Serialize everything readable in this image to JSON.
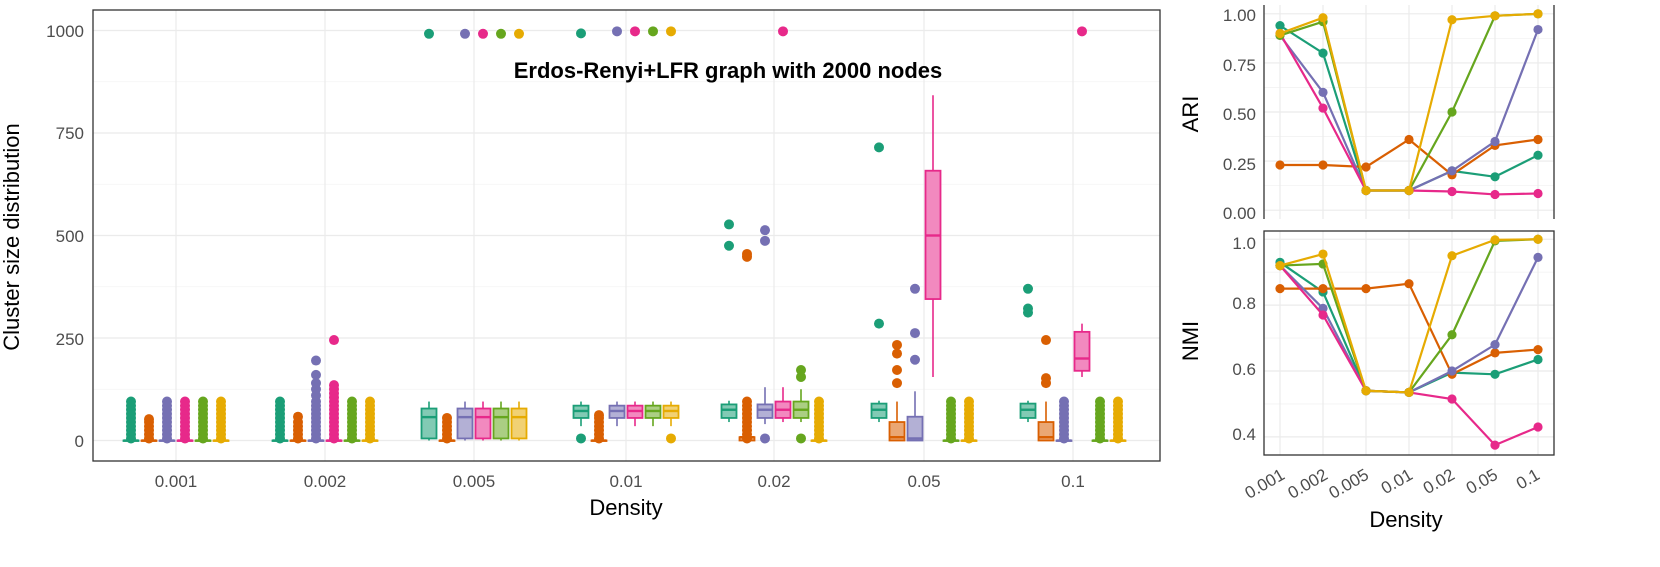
{
  "palette": {
    "Teal": "#1b9e77",
    "Orange": "#d95f02",
    "Purple": "#7570b3",
    "Pink": "#e7298a",
    "Green": "#66a61e",
    "Gold": "#e6ab02"
  },
  "chart_data": [
    {
      "type": "boxplot",
      "title": "Erdos-Renyi+LFR graph with 2000 nodes",
      "xlabel": "Density",
      "ylabel": "Cluster size distribution",
      "categories": [
        "0.001",
        "0.002",
        "0.005",
        "0.01",
        "0.02",
        "0.05",
        "0.1"
      ],
      "series_names": [
        "Teal",
        "Orange",
        "Purple",
        "Pink",
        "Green",
        "Gold"
      ],
      "yticks": [
        0,
        250,
        500,
        750,
        1000
      ],
      "ylim": [
        -50,
        1050
      ],
      "groups": [
        [
          {
            "series": "Teal",
            "q1": 0,
            "median": 0,
            "q3": 0,
            "lo": 0,
            "hi": 0,
            "outliers": [
              5,
              15,
              25,
              35,
              45,
              55,
              65,
              75,
              85,
              95
            ]
          },
          {
            "series": "Orange",
            "q1": 0,
            "median": 0,
            "q3": 0,
            "lo": 0,
            "hi": 0,
            "outliers": [
              5,
              15,
              25,
              35,
              45,
              52
            ]
          },
          {
            "series": "Purple",
            "q1": 0,
            "median": 0,
            "q3": 0,
            "lo": 0,
            "hi": 0,
            "outliers": [
              5,
              15,
              25,
              35,
              45,
              55,
              65,
              75,
              85,
              95
            ]
          },
          {
            "series": "Pink",
            "q1": 0,
            "median": 0,
            "q3": 0,
            "lo": 0,
            "hi": 0,
            "outliers": [
              5,
              15,
              25,
              35,
              45,
              55,
              65,
              75,
              85,
              95
            ]
          },
          {
            "series": "Green",
            "q1": 0,
            "median": 0,
            "q3": 0,
            "lo": 0,
            "hi": 0,
            "outliers": [
              5,
              15,
              25,
              35,
              45,
              55,
              65,
              75,
              85,
              95
            ]
          },
          {
            "series": "Gold",
            "q1": 0,
            "median": 0,
            "q3": 0,
            "lo": 0,
            "hi": 0,
            "outliers": [
              5,
              15,
              25,
              35,
              45,
              55,
              65,
              75,
              85,
              95
            ]
          }
        ],
        [
          {
            "series": "Teal",
            "q1": 0,
            "median": 0,
            "q3": 0,
            "lo": 0,
            "hi": 0,
            "outliers": [
              5,
              15,
              25,
              35,
              45,
              55,
              65,
              75,
              85,
              95
            ]
          },
          {
            "series": "Orange",
            "q1": 0,
            "median": 0,
            "q3": 0,
            "lo": 0,
            "hi": 0,
            "outliers": [
              5,
              15,
              25,
              35,
              45,
              58
            ]
          },
          {
            "series": "Purple",
            "q1": 0,
            "median": 0,
            "q3": 0,
            "lo": 0,
            "hi": 0,
            "outliers": [
              5,
              15,
              25,
              35,
              45,
              55,
              65,
              75,
              85,
              95,
              110,
              125,
              140,
              160,
              195
            ]
          },
          {
            "series": "Pink",
            "q1": 0,
            "median": 0,
            "q3": 0,
            "lo": 0,
            "hi": 0,
            "outliers": [
              5,
              15,
              25,
              35,
              45,
              55,
              65,
              75,
              85,
              95,
              105,
              115,
              125,
              135,
              245
            ]
          },
          {
            "series": "Green",
            "q1": 0,
            "median": 0,
            "q3": 0,
            "lo": 0,
            "hi": 0,
            "outliers": [
              5,
              15,
              25,
              35,
              45,
              55,
              65,
              75,
              85,
              95
            ]
          },
          {
            "series": "Gold",
            "q1": 0,
            "median": 0,
            "q3": 0,
            "lo": 0,
            "hi": 0,
            "outliers": [
              5,
              15,
              25,
              35,
              45,
              55,
              65,
              75,
              85,
              95
            ]
          }
        ],
        [
          {
            "series": "Teal",
            "q1": 5,
            "median": 57,
            "q3": 78,
            "lo": 0,
            "hi": 95,
            "outliers": [
              992
            ]
          },
          {
            "series": "Orange",
            "q1": 0,
            "median": 0,
            "q3": 0,
            "lo": 0,
            "hi": 0,
            "outliers": [
              5,
              15,
              25,
              35,
              45,
              55
            ]
          },
          {
            "series": "Purple",
            "q1": 5,
            "median": 57,
            "q3": 78,
            "lo": 0,
            "hi": 95,
            "outliers": [
              992
            ]
          },
          {
            "series": "Pink",
            "q1": 5,
            "median": 57,
            "q3": 78,
            "lo": 0,
            "hi": 95,
            "outliers": [
              992
            ]
          },
          {
            "series": "Green",
            "q1": 5,
            "median": 57,
            "q3": 78,
            "lo": 0,
            "hi": 95,
            "outliers": [
              992
            ]
          },
          {
            "series": "Gold",
            "q1": 5,
            "median": 57,
            "q3": 78,
            "lo": 0,
            "hi": 95,
            "outliers": [
              992
            ]
          }
        ],
        [
          {
            "series": "Teal",
            "q1": 55,
            "median": 72,
            "q3": 85,
            "lo": 35,
            "hi": 95,
            "outliers": [
              5,
              993
            ]
          },
          {
            "series": "Orange",
            "q1": 0,
            "median": 0,
            "q3": 0,
            "lo": 0,
            "hi": 0,
            "outliers": [
              5,
              15,
              25,
              35,
              45,
              55,
              62
            ]
          },
          {
            "series": "Purple",
            "q1": 55,
            "median": 72,
            "q3": 85,
            "lo": 35,
            "hi": 95,
            "outliers": [
              998
            ]
          },
          {
            "series": "Pink",
            "q1": 55,
            "median": 72,
            "q3": 85,
            "lo": 35,
            "hi": 95,
            "outliers": [
              998
            ]
          },
          {
            "series": "Green",
            "q1": 55,
            "median": 72,
            "q3": 85,
            "lo": 35,
            "hi": 95,
            "outliers": [
              998
            ]
          },
          {
            "series": "Gold",
            "q1": 55,
            "median": 72,
            "q3": 85,
            "lo": 35,
            "hi": 95,
            "outliers": [
              5,
              998
            ]
          }
        ],
        [
          {
            "series": "Teal",
            "q1": 55,
            "median": 75,
            "q3": 88,
            "lo": 45,
            "hi": 97,
            "outliers": [
              475,
              527
            ]
          },
          {
            "series": "Orange",
            "q1": 0,
            "median": 8,
            "q3": 8,
            "lo": 0,
            "hi": 95,
            "outliers": [
              5,
              15,
              25,
              35,
              45,
              55,
              65,
              75,
              85,
              95,
              448,
              455
            ]
          },
          {
            "series": "Purple",
            "q1": 55,
            "median": 75,
            "q3": 88,
            "lo": 40,
            "hi": 130,
            "outliers": [
              5,
              487,
              513
            ]
          },
          {
            "series": "Pink",
            "q1": 55,
            "median": 75,
            "q3": 95,
            "lo": 45,
            "hi": 130,
            "outliers": [
              998
            ]
          },
          {
            "series": "Green",
            "q1": 55,
            "median": 75,
            "q3": 95,
            "lo": 45,
            "hi": 125,
            "outliers": [
              5,
              155,
              172
            ]
          },
          {
            "series": "Gold",
            "q1": 0,
            "median": 0,
            "q3": 0,
            "lo": 0,
            "hi": 0,
            "outliers": [
              5,
              15,
              25,
              35,
              45,
              55,
              65,
              75,
              85,
              95
            ]
          }
        ],
        [
          {
            "series": "Teal",
            "q1": 55,
            "median": 75,
            "q3": 90,
            "lo": 45,
            "hi": 97,
            "outliers": [
              285,
              715
            ]
          },
          {
            "series": "Orange",
            "q1": 0,
            "median": 8,
            "q3": 45,
            "lo": 0,
            "hi": 95,
            "outliers": [
              140,
              172,
              212,
              233
            ]
          },
          {
            "series": "Purple",
            "q1": 0,
            "median": 5,
            "q3": 58,
            "lo": 0,
            "hi": 120,
            "outliers": [
              197,
              262,
              370
            ]
          },
          {
            "series": "Pink",
            "q1": 345,
            "median": 500,
            "q3": 658,
            "lo": 155,
            "hi": 842,
            "outliers": []
          },
          {
            "series": "Green",
            "q1": 0,
            "median": 0,
            "q3": 0,
            "lo": 0,
            "hi": 0,
            "outliers": [
              5,
              15,
              25,
              35,
              45,
              55,
              65,
              75,
              85,
              95
            ]
          },
          {
            "series": "Gold",
            "q1": 0,
            "median": 0,
            "q3": 0,
            "lo": 0,
            "hi": 0,
            "outliers": [
              5,
              15,
              25,
              35,
              45,
              55,
              65,
              75,
              85,
              95
            ]
          }
        ],
        [
          {
            "series": "Teal",
            "q1": 55,
            "median": 75,
            "q3": 90,
            "lo": 45,
            "hi": 97,
            "outliers": [
              312,
              322,
              370
            ]
          },
          {
            "series": "Orange",
            "q1": 0,
            "median": 8,
            "q3": 45,
            "lo": 0,
            "hi": 95,
            "outliers": [
              140,
              152,
              245
            ]
          },
          {
            "series": "Purple",
            "q1": 0,
            "median": 0,
            "q3": 0,
            "lo": 0,
            "hi": 0,
            "outliers": [
              5,
              15,
              25,
              35,
              45,
              55,
              65,
              75,
              85,
              95
            ]
          },
          {
            "series": "Pink",
            "q1": 170,
            "median": 200,
            "q3": 265,
            "lo": 155,
            "hi": 285,
            "outliers": [
              998
            ]
          },
          {
            "series": "Green",
            "q1": 0,
            "median": 0,
            "q3": 0,
            "lo": 0,
            "hi": 0,
            "outliers": [
              5,
              15,
              25,
              35,
              45,
              55,
              65,
              75,
              85,
              95
            ]
          },
          {
            "series": "Gold",
            "q1": 0,
            "median": 0,
            "q3": 0,
            "lo": 0,
            "hi": 0,
            "outliers": [
              5,
              15,
              25,
              35,
              45,
              55,
              65,
              75,
              85,
              95
            ]
          }
        ]
      ]
    },
    {
      "type": "line",
      "xlabel": "Density",
      "ylabel": "ARI",
      "x": [
        "0.001",
        "0.002",
        "0.005",
        "0.01",
        "0.02",
        "0.05",
        "0.1"
      ],
      "yticks": [
        "0.00",
        "0.25",
        "0.50",
        "0.75",
        "1.00"
      ],
      "ylim": [
        -0.045,
        1.045
      ],
      "series": [
        {
          "name": "Teal",
          "values": [
            0.94,
            0.8,
            0.1,
            0.1,
            0.2,
            0.17,
            0.28
          ]
        },
        {
          "name": "Orange",
          "values": [
            0.23,
            0.23,
            0.22,
            0.36,
            0.18,
            0.33,
            0.36
          ]
        },
        {
          "name": "Purple",
          "values": [
            0.89,
            0.6,
            0.1,
            0.1,
            0.2,
            0.35,
            0.92
          ]
        },
        {
          "name": "Pink",
          "values": [
            0.9,
            0.52,
            0.1,
            0.1,
            0.095,
            0.08,
            0.085
          ]
        },
        {
          "name": "Green",
          "values": [
            0.89,
            0.96,
            0.1,
            0.1,
            0.5,
            0.99,
            1.0
          ]
        },
        {
          "name": "Gold",
          "values": [
            0.9,
            0.98,
            0.1,
            0.1,
            0.97,
            0.99,
            1.0
          ]
        }
      ]
    },
    {
      "type": "line",
      "xlabel": "Density",
      "ylabel": "NMI",
      "x": [
        "0.001",
        "0.002",
        "0.005",
        "0.01",
        "0.02",
        "0.05",
        "0.1"
      ],
      "yticks": [
        "0.4",
        "0.6",
        "0.8",
        "1.0"
      ],
      "ylim": [
        0.345,
        1.025
      ],
      "series": [
        {
          "name": "Teal",
          "values": [
            0.93,
            0.84,
            0.54,
            0.535,
            0.595,
            0.59,
            0.635
          ]
        },
        {
          "name": "Orange",
          "values": [
            0.85,
            0.85,
            0.85,
            0.865,
            0.59,
            0.655,
            0.665
          ]
        },
        {
          "name": "Purple",
          "values": [
            0.92,
            0.79,
            0.54,
            0.535,
            0.6,
            0.68,
            0.945
          ]
        },
        {
          "name": "Pink",
          "values": [
            0.92,
            0.77,
            0.54,
            0.535,
            0.515,
            0.375,
            0.43
          ]
        },
        {
          "name": "Green",
          "values": [
            0.92,
            0.925,
            0.54,
            0.535,
            0.71,
            0.995,
            1.0
          ]
        },
        {
          "name": "Gold",
          "values": [
            0.92,
            0.955,
            0.54,
            0.535,
            0.95,
            0.998,
            1.0
          ]
        }
      ]
    }
  ]
}
